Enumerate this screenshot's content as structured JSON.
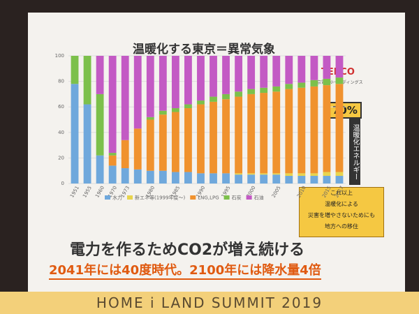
{
  "slide": {
    "brand": "TEPCO",
    "brand_sub": "東京電力ホールディングス",
    "badge": "70%",
    "vertical_note": "温暖化エネルギー",
    "callout": [
      "これ以上",
      "温暖化による",
      "災害を増やさないためにも",
      "地方への移住"
    ],
    "headline": "電力を作るためCO2が増え続ける",
    "subline": "2041年には40度時代。2100年には降水量4倍",
    "banner": "HOME i LAND SUMMIT 2019"
  },
  "chart_data": {
    "type": "stacked-bar",
    "title": "温暖化する東京＝異常気象",
    "categories": [
      "1951",
      "1955",
      "1960",
      "1970",
      "1973",
      null,
      "1980",
      null,
      "1985",
      null,
      "1990",
      null,
      "1995",
      null,
      "2000",
      null,
      "2005",
      null,
      "2010",
      null,
      "2015",
      "2017"
    ],
    "ylim": [
      0,
      100
    ],
    "yticks": [
      0,
      20,
      40,
      60,
      80,
      100
    ],
    "series": [
      {
        "name": "水力",
        "color": "#6fa8dc",
        "values": [
          78,
          62,
          22,
          14,
          12,
          11,
          10,
          10,
          9,
          9,
          8,
          8,
          8,
          7,
          7,
          7,
          7,
          6,
          6,
          6,
          6,
          6
        ]
      },
      {
        "name": "新エネ等(1999年度～)",
        "color": "#e8d44d",
        "values": [
          0,
          0,
          0,
          0,
          0,
          0,
          0,
          0,
          0,
          0,
          0,
          0,
          0,
          1,
          1,
          1,
          1,
          2,
          2,
          2,
          3,
          3
        ]
      },
      {
        "name": "LNG,LPG",
        "color": "#f0922e",
        "values": [
          0,
          0,
          0,
          8,
          22,
          32,
          40,
          44,
          47,
          50,
          54,
          56,
          58,
          60,
          62,
          63,
          64,
          66,
          67,
          68,
          68,
          69
        ]
      },
      {
        "name": "石炭",
        "color": "#7cc04b",
        "values": [
          22,
          38,
          48,
          2,
          0,
          0,
          2,
          3,
          3,
          3,
          3,
          4,
          4,
          4,
          4,
          4,
          4,
          4,
          4,
          5,
          5,
          5
        ]
      },
      {
        "name": "石油",
        "color": "#c35ac4",
        "values": [
          0,
          0,
          30,
          76,
          66,
          57,
          48,
          43,
          41,
          38,
          35,
          32,
          30,
          28,
          26,
          25,
          24,
          22,
          21,
          19,
          18,
          17
        ]
      }
    ]
  }
}
